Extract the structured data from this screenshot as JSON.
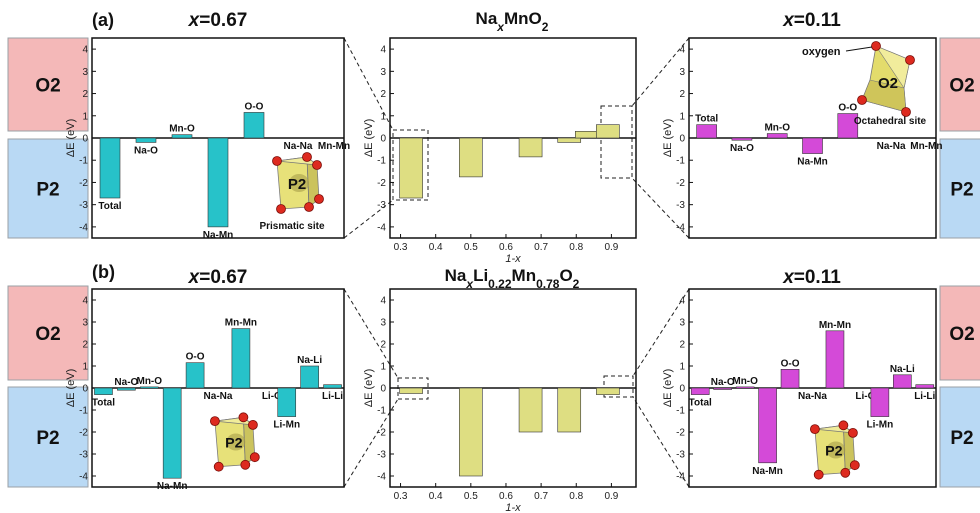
{
  "figure": {
    "panel_a_label": "(a)",
    "panel_b_label": "(b)",
    "title_a_left": "x=0.67",
    "title_a_right": "x=0.11",
    "title_b_left": "x=0.67",
    "title_b_right": "x=0.11",
    "title_a_mid": "NaxMnO2",
    "title_b_mid": "NaxLi0.22Mn0.78O2",
    "phase_top": "O2",
    "phase_bottom": "P2",
    "ylabel": "ΔE (eV)",
    "mid_xlabel": "1-x",
    "label_oxygen": "oxygen",
    "label_octahedral": "Octahedral site",
    "label_prismatic": "Prismatic site",
    "poly_p2": "P2",
    "poly_o2": "O2"
  },
  "colors": {
    "cyan": "#27c2c9",
    "magenta": "#d44ad8",
    "olive": "#dede82",
    "pink_box": "#f4b8b8",
    "blue_box": "#b9d9f4",
    "atom": "#dd2a1f"
  },
  "chart_data": [
    {
      "id": "a-left",
      "type": "bar",
      "ylim": [
        -4.5,
        4.5
      ],
      "yticks": [
        -4,
        -3,
        -2,
        -1,
        0,
        1,
        2,
        3,
        4
      ],
      "categories": [
        "Total",
        "Na-O",
        "Mn-O",
        "Na-Mn",
        "O-O",
        "Na-Na",
        "Mn-Mn"
      ],
      "values": [
        -2.7,
        -0.2,
        0.15,
        -4.0,
        1.15,
        0.0,
        0.0
      ]
    },
    {
      "id": "a-right",
      "type": "bar",
      "ylim": [
        -4.5,
        4.5
      ],
      "yticks": [
        -4,
        -3,
        -2,
        -1,
        0,
        1,
        2,
        3,
        4
      ],
      "categories": [
        "Total",
        "Na-O",
        "Mn-O",
        "Na-Mn",
        "O-O",
        "Na-Na",
        "Mn-Mn"
      ],
      "values": [
        0.6,
        -0.1,
        0.2,
        -0.7,
        1.1,
        0.0,
        0.0
      ]
    },
    {
      "id": "a-mid",
      "type": "bar",
      "ylim": [
        -4.5,
        4.5
      ],
      "yticks": [
        -4,
        -3,
        -2,
        -1,
        0,
        1,
        2,
        3,
        4
      ],
      "xlim": [
        0.27,
        0.97
      ],
      "xticks": [
        0.3,
        0.4,
        0.5,
        0.6,
        0.7,
        0.8,
        0.9
      ],
      "x": [
        0.33,
        0.5,
        0.67,
        0.78,
        0.83,
        0.89
      ],
      "values": [
        -2.7,
        -1.75,
        -0.85,
        -0.2,
        0.3,
        0.6
      ]
    },
    {
      "id": "b-left",
      "type": "bar",
      "ylim": [
        -4.5,
        4.5
      ],
      "yticks": [
        -4,
        -3,
        -2,
        -1,
        0,
        1,
        2,
        3,
        4
      ],
      "categories": [
        "Total",
        "Na-O",
        "Mn-O",
        "Na-Mn",
        "O-O",
        "Na-Na",
        "Mn-Mn",
        "Li-O",
        "Li-Mn",
        "Na-Li",
        "Li-Li"
      ],
      "values": [
        -0.3,
        -0.1,
        0.05,
        -4.1,
        1.15,
        0.0,
        2.7,
        0.0,
        -1.3,
        1.0,
        0.15
      ]
    },
    {
      "id": "b-right",
      "type": "bar",
      "ylim": [
        -4.5,
        4.5
      ],
      "yticks": [
        -4,
        -3,
        -2,
        -1,
        0,
        1,
        2,
        3,
        4
      ],
      "categories": [
        "Total",
        "Na-O",
        "Mn-O",
        "Na-Mn",
        "O-O",
        "Na-Na",
        "Mn-Mn",
        "Li-O",
        "Li-Mn",
        "Na-Li",
        "Li-Li"
      ],
      "values": [
        -0.3,
        -0.05,
        0.05,
        -3.4,
        0.85,
        0.0,
        2.6,
        0.0,
        -1.3,
        0.6,
        0.15
      ]
    },
    {
      "id": "b-mid",
      "type": "bar",
      "ylim": [
        -4.5,
        4.5
      ],
      "yticks": [
        -4,
        -3,
        -2,
        -1,
        0,
        1,
        2,
        3,
        4
      ],
      "xlim": [
        0.27,
        0.97
      ],
      "xticks": [
        0.3,
        0.4,
        0.5,
        0.6,
        0.7,
        0.8,
        0.9
      ],
      "x": [
        0.33,
        0.5,
        0.67,
        0.78,
        0.89
      ],
      "values": [
        -0.25,
        -4.0,
        -2.0,
        -2.0,
        -0.3
      ]
    }
  ]
}
